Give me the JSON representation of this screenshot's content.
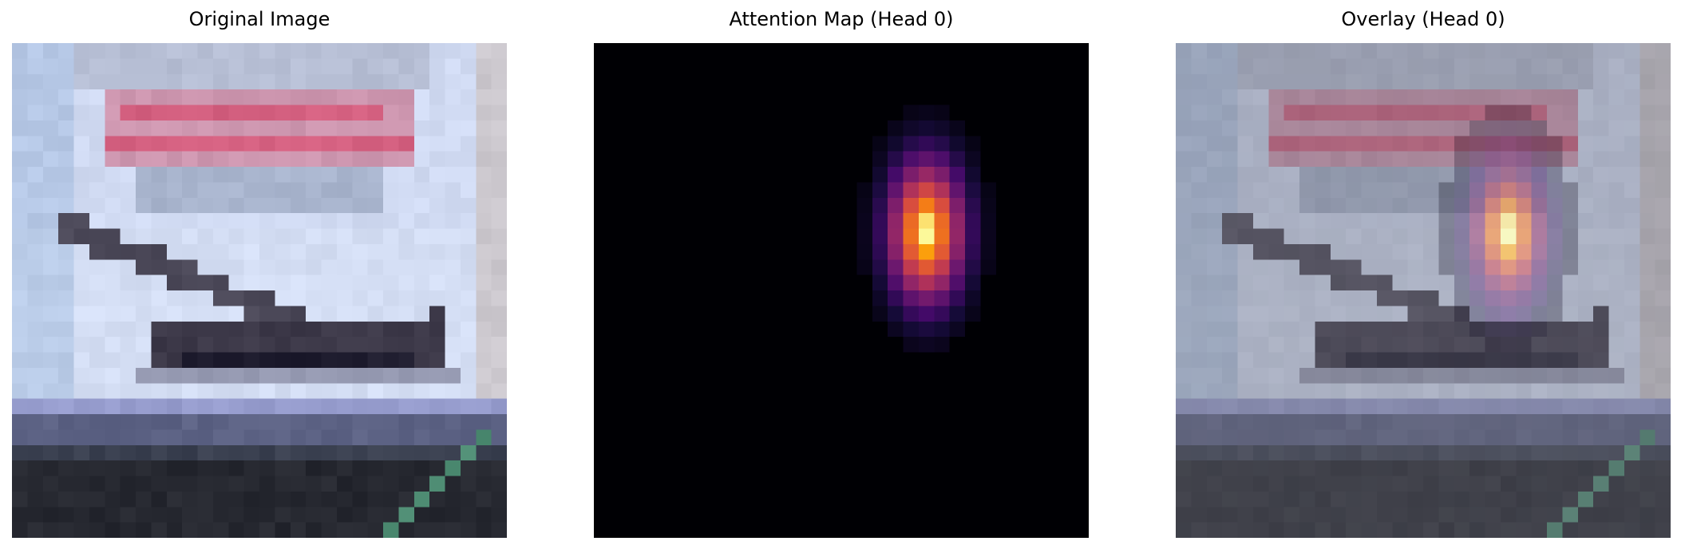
{
  "panels": [
    {
      "title": "Original Image"
    },
    {
      "title": "Attention Map (Head 0)"
    },
    {
      "title": "Overlay (Head 0)"
    }
  ]
}
